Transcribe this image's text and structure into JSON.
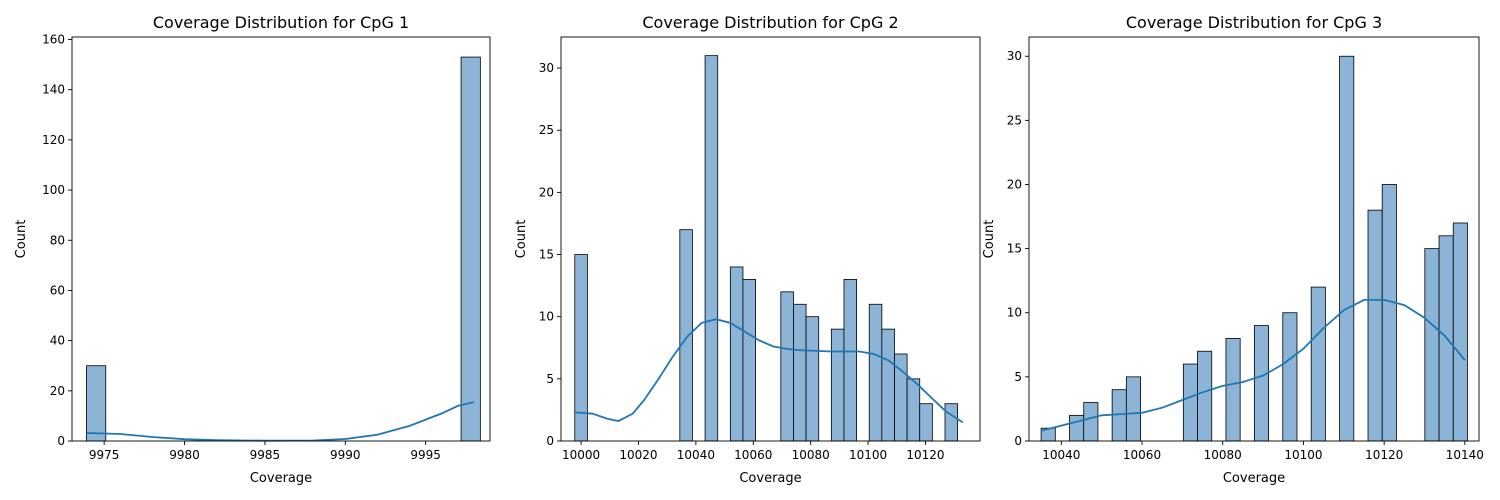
{
  "chart_data": [
    {
      "type": "bar",
      "title": "Coverage Distribution for CpG 1",
      "xlabel": "Coverage",
      "ylabel": "Count",
      "xlim": [
        9973,
        9999
      ],
      "ylim": [
        0,
        161
      ],
      "xticks": [
        9975,
        9980,
        9985,
        9990,
        9995
      ],
      "yticks": [
        0,
        20,
        40,
        60,
        80,
        100,
        120,
        140,
        160
      ],
      "bin_width": 1.2,
      "bins": [
        {
          "x": 9974.5,
          "count": 30
        },
        {
          "x": 9997.8,
          "count": 153
        }
      ],
      "kde": [
        [
          9973.9,
          3.2
        ],
        [
          9976,
          2.8
        ],
        [
          9978,
          1.6
        ],
        [
          9980,
          0.7
        ],
        [
          9982,
          0.3
        ],
        [
          9985,
          0.1
        ],
        [
          9988,
          0.2
        ],
        [
          9990,
          0.8
        ],
        [
          9992,
          2.5
        ],
        [
          9994,
          6
        ],
        [
          9996,
          11
        ],
        [
          9997,
          14
        ],
        [
          9998,
          15.5
        ]
      ]
    },
    {
      "type": "bar",
      "title": "Coverage Distribution for CpG 2",
      "xlabel": "Coverage",
      "ylabel": "Count",
      "xlim": [
        9993,
        10139
      ],
      "ylim": [
        0,
        32.5
      ],
      "xticks": [
        10000,
        10020,
        10040,
        10060,
        10080,
        10100,
        10120
      ],
      "yticks": [
        0,
        5,
        10,
        15,
        20,
        25,
        30
      ],
      "bin_width": 4.4,
      "bins": [
        {
          "x": 10000,
          "count": 15
        },
        {
          "x": 10036.6,
          "count": 17
        },
        {
          "x": 10045.4,
          "count": 31
        },
        {
          "x": 10054.2,
          "count": 14
        },
        {
          "x": 10058.6,
          "count": 13
        },
        {
          "x": 10071.8,
          "count": 12
        },
        {
          "x": 10076.2,
          "count": 11
        },
        {
          "x": 10080.6,
          "count": 10
        },
        {
          "x": 10089.4,
          "count": 9
        },
        {
          "x": 10093.8,
          "count": 13
        },
        {
          "x": 10102.6,
          "count": 11
        },
        {
          "x": 10107,
          "count": 9
        },
        {
          "x": 10111.4,
          "count": 7
        },
        {
          "x": 10115.8,
          "count": 5
        },
        {
          "x": 10120.2,
          "count": 3
        },
        {
          "x": 10129,
          "count": 3
        }
      ],
      "kde": [
        [
          9998,
          2.3
        ],
        [
          10004,
          2.2
        ],
        [
          10009,
          1.8
        ],
        [
          10013,
          1.6
        ],
        [
          10018,
          2.2
        ],
        [
          10022,
          3.3
        ],
        [
          10027,
          5
        ],
        [
          10032,
          6.8
        ],
        [
          10037,
          8.4
        ],
        [
          10042,
          9.5
        ],
        [
          10047,
          9.8
        ],
        [
          10052,
          9.5
        ],
        [
          10057,
          8.8
        ],
        [
          10062,
          8.1
        ],
        [
          10067,
          7.6
        ],
        [
          10072,
          7.4
        ],
        [
          10077,
          7.3
        ],
        [
          10082,
          7.25
        ],
        [
          10087,
          7.2
        ],
        [
          10092,
          7.2
        ],
        [
          10097,
          7.2
        ],
        [
          10102,
          7
        ],
        [
          10107,
          6.5
        ],
        [
          10112,
          5.6
        ],
        [
          10117,
          4.6
        ],
        [
          10122,
          3.5
        ],
        [
          10127,
          2.4
        ],
        [
          10133,
          1.5
        ]
      ]
    },
    {
      "type": "bar",
      "title": "Coverage Distribution for CpG 3",
      "xlabel": "Coverage",
      "ylabel": "Count",
      "xlim": [
        10032,
        10143.5
      ],
      "ylim": [
        0,
        31.5
      ],
      "xticks": [
        10040,
        10060,
        10080,
        10100,
        10120,
        10140
      ],
      "yticks": [
        0,
        5,
        10,
        15,
        20,
        25,
        30
      ],
      "bin_width": 3.52,
      "bins": [
        {
          "x": 10036.76,
          "count": 1
        },
        {
          "x": 10043.8,
          "count": 2
        },
        {
          "x": 10047.32,
          "count": 3
        },
        {
          "x": 10054.36,
          "count": 4
        },
        {
          "x": 10057.88,
          "count": 5
        },
        {
          "x": 10072,
          "count": 6
        },
        {
          "x": 10075.52,
          "count": 7
        },
        {
          "x": 10082.56,
          "count": 8
        },
        {
          "x": 10089.6,
          "count": 9
        },
        {
          "x": 10096.64,
          "count": 10
        },
        {
          "x": 10103.68,
          "count": 12
        },
        {
          "x": 10110.72,
          "count": 30
        },
        {
          "x": 10117.76,
          "count": 18
        },
        {
          "x": 10121.28,
          "count": 20
        },
        {
          "x": 10131.84,
          "count": 15
        },
        {
          "x": 10135.36,
          "count": 16
        },
        {
          "x": 10138.88,
          "count": 17
        }
      ],
      "kde": [
        [
          10035,
          0.8
        ],
        [
          10040,
          1.2
        ],
        [
          10045,
          1.6
        ],
        [
          10050,
          2
        ],
        [
          10055,
          2.1
        ],
        [
          10060,
          2.2
        ],
        [
          10065,
          2.6
        ],
        [
          10070,
          3.2
        ],
        [
          10075,
          3.8
        ],
        [
          10080,
          4.3
        ],
        [
          10085,
          4.6
        ],
        [
          10090,
          5.1
        ],
        [
          10095,
          6
        ],
        [
          10100,
          7.2
        ],
        [
          10105,
          8.8
        ],
        [
          10110,
          10.2
        ],
        [
          10115,
          11
        ],
        [
          10120,
          11
        ],
        [
          10125,
          10.6
        ],
        [
          10130,
          9.6
        ],
        [
          10135,
          8.2
        ],
        [
          10140,
          6.3
        ]
      ]
    }
  ]
}
